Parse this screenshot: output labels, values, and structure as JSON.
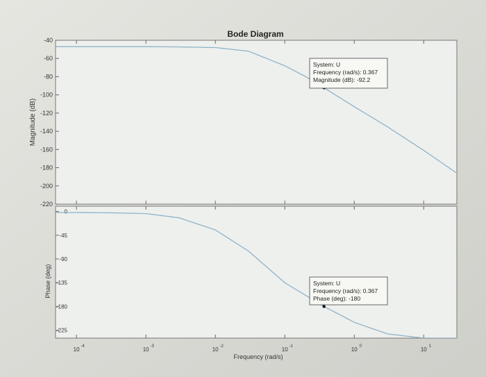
{
  "chart_data": {
    "type": "line",
    "title": "Bode Diagram",
    "xlabel": "Frequency  (rad/s)",
    "xscale": "log",
    "xlim": [
      5e-05,
      30
    ],
    "x_ticks": [
      {
        "base": "10",
        "exp": "-4"
      },
      {
        "base": "10",
        "exp": "-3"
      },
      {
        "base": "10",
        "exp": "-2"
      },
      {
        "base": "10",
        "exp": "-1"
      },
      {
        "base": "10",
        "exp": "0"
      },
      {
        "base": "10",
        "exp": "1"
      }
    ],
    "x_tick_values": [
      0.0001,
      0.001,
      0.01,
      0.1,
      1,
      10
    ],
    "grid": false,
    "colors": {
      "line": "#8fb3c7",
      "background": "#eef0ee",
      "axis": "#555555"
    },
    "panels": [
      {
        "ylabel": "Magnitude (dB)",
        "ylim": [
          -220,
          -40
        ],
        "yticks": [
          "-40",
          "-60",
          "-80",
          "-100",
          "-120",
          "-140",
          "-160",
          "-180",
          "-200",
          "-220"
        ],
        "ytick_values": [
          -40,
          -60,
          -80,
          -100,
          -120,
          -140,
          -160,
          -180,
          -200,
          -220
        ],
        "series": [
          {
            "x": [
              5e-05,
              0.0001,
              0.001,
              0.003,
              0.01,
              0.03,
              0.1,
              0.2,
              0.367,
              1,
              3,
              10,
              30
            ],
            "y": [
              -47,
              -47,
              -47,
              -47.3,
              -48,
              -52,
              -68,
              -80,
              -92.2,
              -113,
              -135,
              -161,
              -186
            ]
          }
        ],
        "datatip": {
          "x": 0.367,
          "y": -92.2,
          "lines": [
            "System: U",
            "Frequency (rad/s): 0.367",
            "Magnitude (dB): -92.2"
          ]
        }
      },
      {
        "ylabel": "Phase (deg)",
        "ylim": [
          -240,
          10
        ],
        "yticks": [
          "0",
          "-45",
          "-90",
          "-135",
          "-180",
          "-225"
        ],
        "ytick_values": [
          0,
          -45,
          -90,
          -135,
          -180,
          -225
        ],
        "series": [
          {
            "x": [
              5e-05,
              0.0001,
              0.0003,
              0.001,
              0.003,
              0.01,
              0.03,
              0.1,
              0.367,
              1,
              3,
              10,
              30
            ],
            "y": [
              -2,
              -2,
              -2.5,
              -4,
              -12,
              -35,
              -75,
              -135,
              -180,
              -210,
              -232,
              -240,
              -240
            ]
          }
        ],
        "datatip": {
          "x": 0.367,
          "y": -180,
          "lines": [
            "System: U",
            "Frequency (rad/s): 0.367",
            "Phase (deg): -180"
          ]
        }
      }
    ]
  }
}
